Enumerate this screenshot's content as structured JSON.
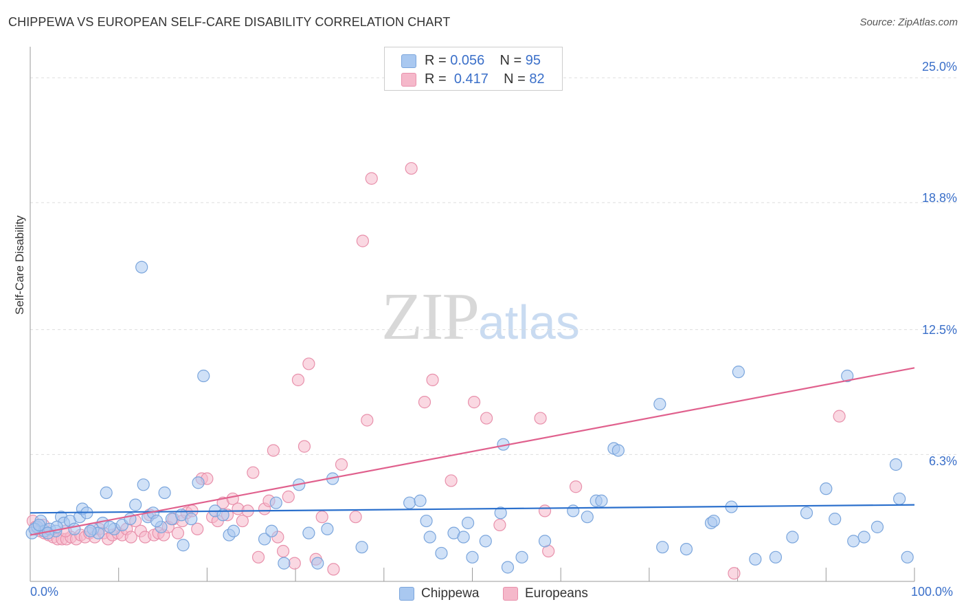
{
  "header": {
    "title": "CHIPPEWA VS EUROPEAN SELF-CARE DISABILITY CORRELATION CHART",
    "source": "Source: ZipAtlas.com"
  },
  "watermark": {
    "zip": "ZIP",
    "atlas": "atlas"
  },
  "legend_top": {
    "rows": [
      {
        "r_label": "R = ",
        "r_value": "0.056",
        "n_label": "N = ",
        "n_value": "95"
      },
      {
        "r_label": "R = ",
        "r_value": "0.417",
        "n_label": "N = ",
        "n_value": "82"
      }
    ]
  },
  "legend_bottom": {
    "items": [
      "Chippewa",
      "Europeans"
    ]
  },
  "colors": {
    "chippewa_fill": "#a9c8f0",
    "chippewa_stroke": "#7aa5dc",
    "chippewa_line": "#2a6fcc",
    "europeans_fill": "#f5b8ca",
    "europeans_stroke": "#e890ab",
    "europeans_line": "#e0608d",
    "tick_text": "#3a6fc9",
    "grid": "#dddddd"
  },
  "chart_data": {
    "type": "scatter",
    "title": "CHIPPEWA VS EUROPEAN SELF-CARE DISABILITY CORRELATION CHART",
    "xlabel": "",
    "ylabel": "Self-Care Disability",
    "xlim": [
      0,
      100
    ],
    "ylim": [
      0,
      26.2
    ],
    "x_tick_labels": [
      "0.0%",
      "100.0%"
    ],
    "y_ticks": [
      6.3,
      12.5,
      18.8,
      25.0
    ],
    "y_tick_labels": [
      "6.3%",
      "12.5%",
      "18.8%",
      "25.0%"
    ],
    "grid": "horizontal dashed",
    "legend_position": "top-center",
    "series": [
      {
        "name": "Chippewa",
        "r": 0.056,
        "n": 95,
        "trend": {
          "x": [
            0,
            100
          ],
          "y": [
            3.4,
            3.8
          ]
        },
        "points": [
          [
            0.2,
            2.4
          ],
          [
            0.8,
            2.7
          ],
          [
            1.2,
            3.0
          ],
          [
            1.6,
            2.5
          ],
          [
            2.2,
            2.6
          ],
          [
            2.9,
            2.5
          ],
          [
            3.5,
            3.2
          ],
          [
            3.8,
            2.9
          ],
          [
            4.5,
            3.0
          ],
          [
            5.0,
            2.6
          ],
          [
            5.6,
            3.2
          ],
          [
            5.9,
            3.6
          ],
          [
            6.4,
            3.4
          ],
          [
            7.1,
            2.6
          ],
          [
            7.7,
            2.4
          ],
          [
            8.2,
            2.9
          ],
          [
            8.6,
            4.4
          ],
          [
            9.5,
            2.6
          ],
          [
            10.4,
            2.8
          ],
          [
            11.3,
            3.1
          ],
          [
            11.9,
            3.8
          ],
          [
            12.6,
            15.6
          ],
          [
            12.8,
            4.8
          ],
          [
            13.3,
            3.2
          ],
          [
            13.9,
            3.4
          ],
          [
            14.8,
            2.7
          ],
          [
            15.2,
            4.4
          ],
          [
            16.0,
            3.1
          ],
          [
            17.1,
            3.3
          ],
          [
            17.3,
            1.8
          ],
          [
            18.2,
            3.1
          ],
          [
            19.0,
            4.9
          ],
          [
            19.6,
            10.2
          ],
          [
            20.9,
            3.5
          ],
          [
            21.8,
            3.3
          ],
          [
            22.5,
            2.3
          ],
          [
            23.0,
            2.5
          ],
          [
            26.5,
            2.1
          ],
          [
            27.3,
            2.5
          ],
          [
            27.8,
            3.9
          ],
          [
            28.7,
            0.9
          ],
          [
            30.4,
            4.8
          ],
          [
            31.5,
            2.4
          ],
          [
            32.5,
            0.9
          ],
          [
            33.6,
            2.6
          ],
          [
            34.2,
            5.1
          ],
          [
            37.5,
            1.7
          ],
          [
            42.9,
            3.9
          ],
          [
            44.1,
            4.0
          ],
          [
            44.8,
            3.0
          ],
          [
            45.2,
            2.2
          ],
          [
            46.5,
            1.4
          ],
          [
            47.9,
            2.4
          ],
          [
            49.0,
            2.2
          ],
          [
            49.5,
            2.9
          ],
          [
            50.0,
            1.2
          ],
          [
            51.5,
            2.0
          ],
          [
            53.2,
            3.4
          ],
          [
            53.5,
            6.8
          ],
          [
            54.0,
            0.7
          ],
          [
            55.6,
            1.2
          ],
          [
            58.2,
            2.0
          ],
          [
            61.4,
            3.5
          ],
          [
            63.0,
            3.2
          ],
          [
            64.0,
            4.0
          ],
          [
            64.6,
            4.0
          ],
          [
            66.0,
            6.6
          ],
          [
            66.5,
            6.5
          ],
          [
            71.2,
            8.8
          ],
          [
            71.5,
            1.7
          ],
          [
            74.2,
            1.6
          ],
          [
            77.0,
            2.9
          ],
          [
            77.3,
            3.0
          ],
          [
            79.3,
            3.7
          ],
          [
            80.1,
            10.4
          ],
          [
            82.0,
            1.1
          ],
          [
            84.3,
            1.2
          ],
          [
            86.2,
            2.2
          ],
          [
            87.8,
            3.4
          ],
          [
            90.0,
            4.6
          ],
          [
            91.0,
            3.1
          ],
          [
            92.4,
            10.2
          ],
          [
            93.1,
            2.0
          ],
          [
            94.3,
            2.2
          ],
          [
            95.8,
            2.7
          ],
          [
            97.9,
            5.8
          ],
          [
            98.3,
            4.1
          ],
          [
            99.2,
            1.2
          ],
          [
            0.5,
            2.6
          ],
          [
            1.0,
            2.8
          ],
          [
            2.0,
            2.4
          ],
          [
            3.0,
            2.7
          ],
          [
            6.8,
            2.5
          ],
          [
            9.0,
            2.7
          ],
          [
            14.3,
            3.0
          ]
        ]
      },
      {
        "name": "Europeans",
        "r": 0.417,
        "n": 82,
        "trend": {
          "x": [
            0,
            100
          ],
          "y": [
            2.3,
            10.6
          ]
        },
        "points": [
          [
            0.3,
            3.0
          ],
          [
            0.6,
            2.7
          ],
          [
            1.1,
            2.5
          ],
          [
            1.6,
            2.4
          ],
          [
            2.1,
            2.3
          ],
          [
            2.6,
            2.2
          ],
          [
            3.1,
            2.1
          ],
          [
            3.6,
            2.1
          ],
          [
            4.1,
            2.1
          ],
          [
            4.6,
            2.2
          ],
          [
            5.2,
            2.1
          ],
          [
            5.7,
            2.3
          ],
          [
            6.2,
            2.2
          ],
          [
            6.7,
            2.4
          ],
          [
            7.3,
            2.2
          ],
          [
            7.8,
            2.6
          ],
          [
            8.3,
            2.4
          ],
          [
            8.8,
            2.1
          ],
          [
            9.3,
            2.3
          ],
          [
            9.9,
            2.4
          ],
          [
            10.4,
            2.3
          ],
          [
            10.9,
            2.6
          ],
          [
            11.4,
            2.2
          ],
          [
            11.9,
            3.0
          ],
          [
            12.5,
            2.5
          ],
          [
            13.0,
            2.2
          ],
          [
            13.5,
            3.3
          ],
          [
            14.0,
            2.3
          ],
          [
            14.5,
            2.4
          ],
          [
            15.1,
            2.3
          ],
          [
            15.6,
            2.7
          ],
          [
            16.2,
            3.1
          ],
          [
            16.7,
            2.4
          ],
          [
            17.2,
            3.0
          ],
          [
            17.7,
            3.4
          ],
          [
            18.3,
            3.5
          ],
          [
            18.9,
            2.6
          ],
          [
            19.4,
            5.1
          ],
          [
            20.0,
            5.1
          ],
          [
            20.6,
            3.2
          ],
          [
            21.2,
            3.0
          ],
          [
            21.8,
            3.9
          ],
          [
            22.3,
            3.3
          ],
          [
            22.9,
            4.1
          ],
          [
            23.5,
            3.6
          ],
          [
            24.0,
            3.0
          ],
          [
            24.6,
            3.5
          ],
          [
            25.2,
            5.4
          ],
          [
            25.8,
            1.2
          ],
          [
            26.5,
            3.6
          ],
          [
            27.0,
            4.0
          ],
          [
            27.5,
            6.5
          ],
          [
            28.0,
            2.2
          ],
          [
            28.6,
            1.5
          ],
          [
            29.2,
            4.2
          ],
          [
            29.9,
            0.9
          ],
          [
            30.3,
            10.0
          ],
          [
            31.0,
            6.7
          ],
          [
            31.5,
            10.8
          ],
          [
            32.3,
            1.1
          ],
          [
            33.0,
            3.2
          ],
          [
            34.3,
            0.6
          ],
          [
            35.2,
            5.8
          ],
          [
            36.8,
            3.2
          ],
          [
            37.6,
            16.9
          ],
          [
            38.1,
            8.0
          ],
          [
            38.6,
            20.0
          ],
          [
            43.1,
            20.5
          ],
          [
            44.6,
            8.9
          ],
          [
            45.5,
            10.0
          ],
          [
            47.6,
            5.0
          ],
          [
            50.2,
            8.9
          ],
          [
            51.6,
            8.1
          ],
          [
            53.1,
            2.8
          ],
          [
            57.7,
            8.1
          ],
          [
            58.2,
            3.5
          ],
          [
            58.6,
            1.5
          ],
          [
            61.7,
            4.7
          ],
          [
            79.6,
            0.4
          ],
          [
            91.5,
            8.2
          ],
          [
            1.5,
            2.8
          ],
          [
            4.0,
            2.5
          ]
        ]
      }
    ]
  }
}
